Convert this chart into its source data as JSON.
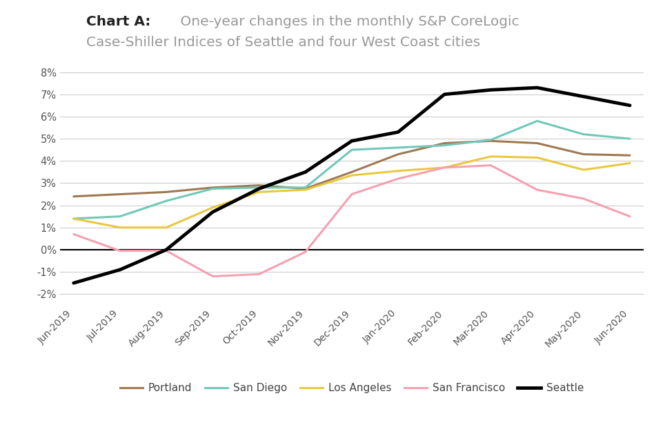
{
  "months": [
    "Jun-2019",
    "Jul-2019",
    "Aug-2019",
    "Sep-2019",
    "Oct-2019",
    "Nov-2019",
    "Dec-2019",
    "Jan-2020",
    "Feb-2020",
    "Mar-2020",
    "Apr-2020",
    "May-2020",
    "Jun-2020"
  ],
  "portland": [
    2.4,
    2.5,
    2.6,
    2.8,
    2.9,
    2.75,
    3.5,
    4.3,
    4.8,
    4.9,
    4.8,
    4.3,
    4.25
  ],
  "san_diego": [
    1.4,
    1.5,
    2.2,
    2.75,
    2.8,
    2.8,
    4.5,
    4.6,
    4.7,
    4.95,
    5.8,
    5.2,
    5.0
  ],
  "los_angeles": [
    1.4,
    1.0,
    1.0,
    1.9,
    2.6,
    2.7,
    3.35,
    3.55,
    3.7,
    4.2,
    4.15,
    3.6,
    3.9
  ],
  "san_francisco": [
    0.7,
    -0.05,
    -0.05,
    -1.2,
    -1.1,
    -0.1,
    2.5,
    3.2,
    3.7,
    3.8,
    2.7,
    2.3,
    1.5
  ],
  "seattle": [
    -1.5,
    -0.9,
    0.0,
    1.7,
    2.75,
    3.5,
    4.9,
    5.3,
    7.0,
    7.2,
    7.3,
    6.9,
    6.5
  ],
  "colors": {
    "portland": "#a07850",
    "san_diego": "#70c8b8",
    "los_angeles": "#e8c840",
    "san_francisco": "#f5a0b0",
    "seattle": "#000000"
  },
  "ylim": [
    -2.5,
    8.5
  ],
  "yticks": [
    -2,
    -1,
    0,
    1,
    2,
    3,
    4,
    5,
    6,
    7,
    8
  ],
  "background_color": "#ffffff",
  "grid_color": "#cccccc",
  "legend_labels": [
    "Portland",
    "San Diego",
    "Los Angeles",
    "San Francisco",
    "Seattle"
  ],
  "linewidth": 2.2,
  "seattle_linewidth": 3.5
}
